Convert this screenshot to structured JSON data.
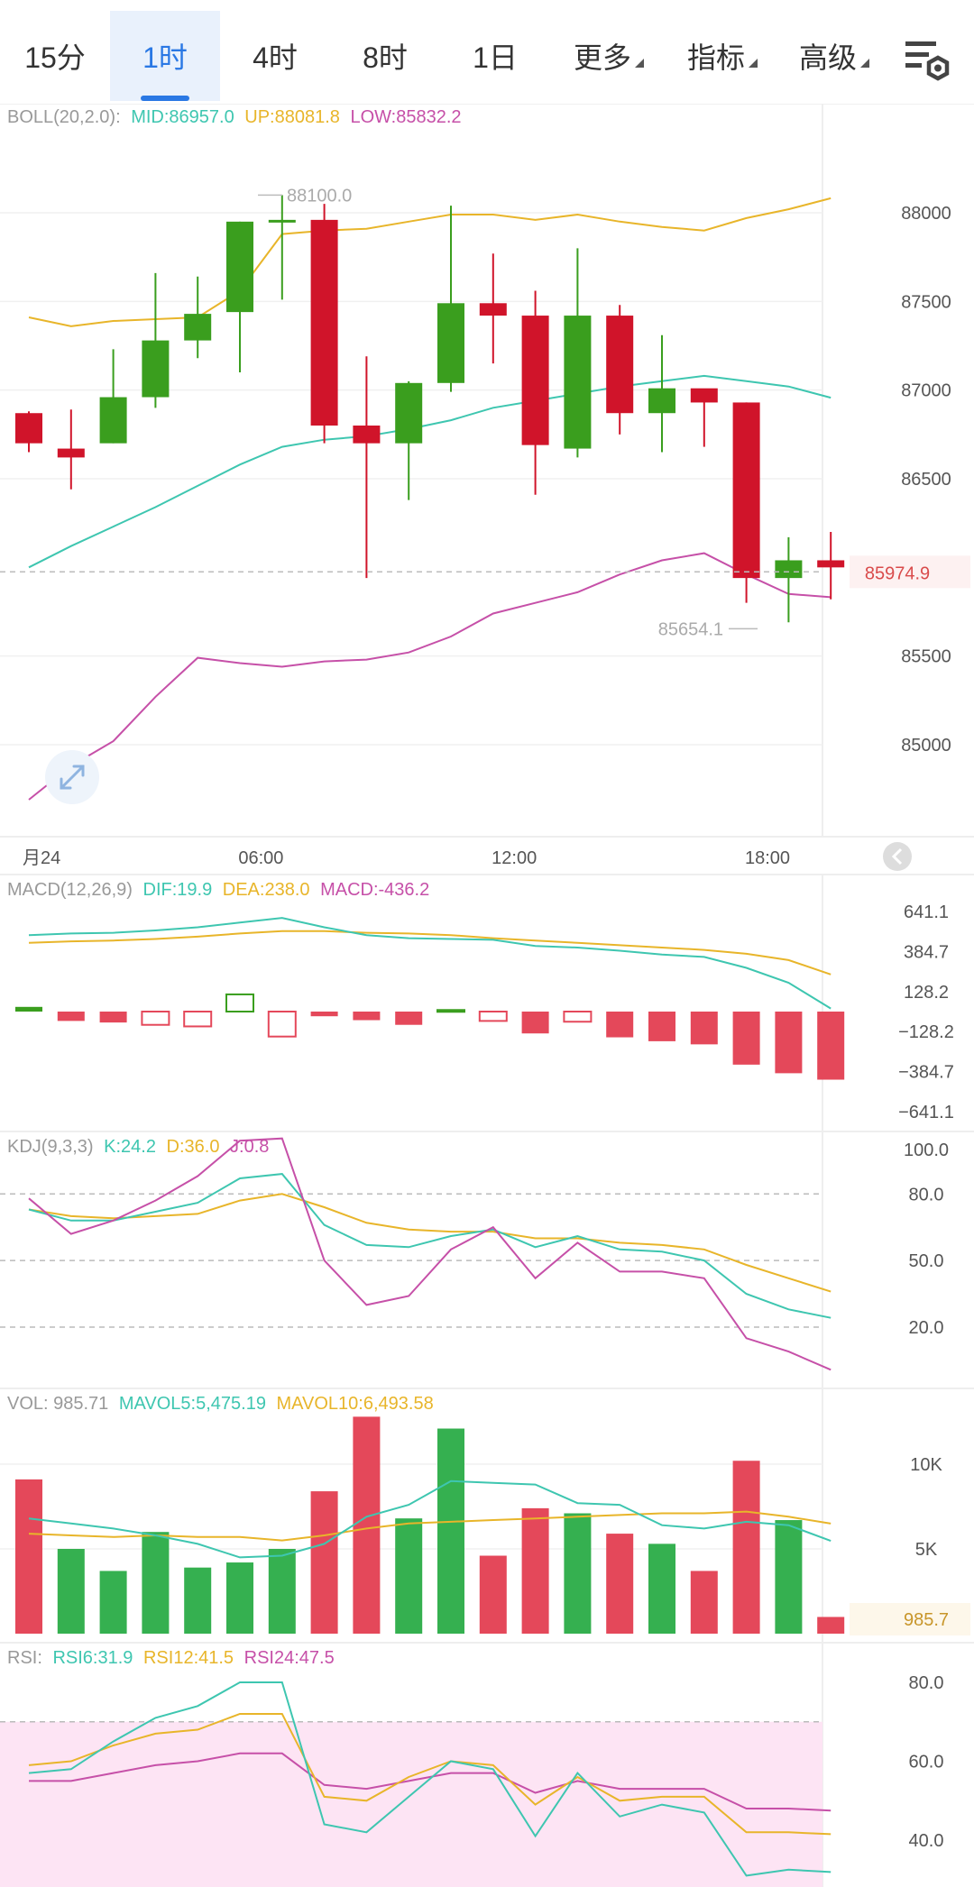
{
  "tabs": [
    {
      "label": "15分"
    },
    {
      "label": "1时",
      "active": true
    },
    {
      "label": "4时"
    },
    {
      "label": "8时"
    },
    {
      "label": "1日"
    },
    {
      "label": "更多",
      "dropdown": true
    },
    {
      "label": "指标",
      "dropdown": true
    },
    {
      "label": "高级",
      "dropdown": true
    }
  ],
  "settings_icon": "chart-settings-icon",
  "colors": {
    "up": "#3a9e1e",
    "down": "#d0142a",
    "mid": "#3ec6b0",
    "upper": "#e8b52a",
    "lower": "#c650a8",
    "pink_band": "#fde4f4"
  },
  "main": {
    "legend": {
      "name": "BOLL(20,2.0):",
      "mid": "MID:86957.0",
      "up": "UP:88081.8",
      "low": "LOW:85832.2"
    },
    "y_ticks": [
      "88000",
      "87500",
      "87000",
      "86500",
      "85500",
      "85000"
    ],
    "y_tick_values": [
      88000,
      87500,
      87000,
      86500,
      85500,
      85000
    ],
    "price_label": "85974.9",
    "price": 85974.9,
    "high_label": "88100.0",
    "high": 88100.0,
    "low_label": "85654.1",
    "low": 85654.1,
    "x_labels": [
      {
        "t": "月24",
        "i": -0.15
      },
      {
        "t": "06:00",
        "i": 5.5
      },
      {
        "t": "12:00",
        "i": 11.5
      },
      {
        "t": "18:00",
        "i": 17.5
      }
    ]
  },
  "chart_data": {
    "type": "candlestick",
    "candles": [
      {
        "o": 86870,
        "c": 86700,
        "h": 86880,
        "l": 86650
      },
      {
        "o": 86670,
        "c": 86620,
        "h": 86890,
        "l": 86440
      },
      {
        "o": 86700,
        "c": 86960,
        "h": 87230,
        "l": 86700
      },
      {
        "o": 86960,
        "c": 87280,
        "h": 87660,
        "l": 86900
      },
      {
        "o": 87280,
        "c": 87430,
        "h": 87640,
        "l": 87180
      },
      {
        "o": 87440,
        "c": 87950,
        "h": 87950,
        "l": 87100
      },
      {
        "o": 87950,
        "c": 87960,
        "h": 88100,
        "l": 87510
      },
      {
        "o": 87960,
        "c": 86800,
        "h": 88050,
        "l": 86700
      },
      {
        "o": 86800,
        "c": 86700,
        "h": 87190,
        "l": 85940
      },
      {
        "o": 86700,
        "c": 87040,
        "h": 87050,
        "l": 86380
      },
      {
        "o": 87040,
        "c": 87490,
        "h": 88040,
        "l": 86990
      },
      {
        "o": 87490,
        "c": 87420,
        "h": 87770,
        "l": 87150
      },
      {
        "o": 87420,
        "c": 86690,
        "h": 87560,
        "l": 86410
      },
      {
        "o": 86670,
        "c": 87420,
        "h": 87800,
        "l": 86620
      },
      {
        "o": 87420,
        "c": 86870,
        "h": 87480,
        "l": 86750
      },
      {
        "o": 86870,
        "c": 87010,
        "h": 87310,
        "l": 86650
      },
      {
        "o": 87010,
        "c": 86930,
        "h": 87000,
        "l": 86680
      },
      {
        "o": 86930,
        "c": 85940,
        "h": 86930,
        "l": 85800
      },
      {
        "o": 85940,
        "c": 86040,
        "h": 86170,
        "l": 85690
      },
      {
        "o": 86040,
        "c": 86000,
        "h": 86200,
        "l": 85820
      }
    ],
    "boll": {
      "mid": [
        86000,
        86120,
        86230,
        86340,
        86460,
        86580,
        86680,
        86720,
        86740,
        86780,
        86830,
        86900,
        86940,
        86980,
        87020,
        87050,
        87080,
        87050,
        87020,
        86957
      ],
      "up": [
        87410,
        87360,
        87390,
        87400,
        87410,
        87560,
        87880,
        87900,
        87910,
        87950,
        87990,
        87990,
        87960,
        87990,
        87950,
        87920,
        87900,
        87970,
        88020,
        88082
      ],
      "low": [
        84690,
        84880,
        85020,
        85270,
        85490,
        85460,
        85440,
        85470,
        85480,
        85520,
        85610,
        85740,
        85800,
        85860,
        85960,
        86040,
        86080,
        85960,
        85850,
        85832
      ]
    },
    "macd": {
      "legend": {
        "name": "MACD(12,26,9)",
        "dif": "DIF:19.9",
        "dea": "DEA:238.0",
        "macd": "MACD:-436.2"
      },
      "y_ticks": [
        "641.1",
        "384.7",
        "128.2",
        "−128.2",
        "−384.7",
        "−641.1"
      ],
      "y_tick_values": [
        641.1,
        384.7,
        128.2,
        -128.2,
        -384.7,
        -641.1
      ],
      "hist": [
        30,
        -60,
        -70,
        -85,
        -95,
        110,
        -160,
        -30,
        -55,
        -85,
        10,
        -60,
        -140,
        -65,
        -165,
        -190,
        -210,
        -340,
        -395,
        -436.2
      ],
      "hist_hollow": [
        false,
        false,
        false,
        true,
        true,
        true,
        true,
        false,
        false,
        false,
        true,
        true,
        false,
        true,
        false,
        false,
        false,
        false,
        false,
        false
      ],
      "dif": [
        490,
        500,
        505,
        520,
        540,
        570,
        600,
        540,
        490,
        470,
        465,
        460,
        420,
        410,
        390,
        365,
        350,
        280,
        185,
        19.9
      ],
      "dea": [
        440,
        450,
        455,
        465,
        480,
        500,
        515,
        515,
        505,
        500,
        490,
        470,
        455,
        440,
        425,
        410,
        395,
        370,
        330,
        238
      ]
    },
    "kdj": {
      "legend": {
        "name": "KDJ(9,3,3)",
        "k": "K:24.2",
        "d": "D:36.0",
        "j": "J:0.8"
      },
      "y_ticks": [
        "100.0",
        "80.0",
        "50.0",
        "20.0"
      ],
      "y_tick_values": [
        100,
        80,
        50,
        20
      ],
      "k": [
        73,
        68,
        68,
        72,
        76,
        87,
        89,
        66,
        57,
        56,
        61,
        64,
        56,
        61,
        55,
        54,
        50,
        35,
        28,
        24.2
      ],
      "d": [
        73,
        70,
        69,
        70,
        71,
        77,
        80,
        74,
        67,
        64,
        63,
        63,
        60,
        60,
        58,
        57,
        55,
        48,
        42,
        36
      ],
      "j": [
        78,
        62,
        68,
        77,
        88,
        104,
        105,
        50,
        30,
        34,
        55,
        65,
        42,
        58,
        45,
        45,
        42,
        15,
        9,
        0.8
      ]
    },
    "vol": {
      "legend": {
        "name": "VOL: 985.71",
        "mavol5": "MAVOL5:5,475.19",
        "mavol10": "MAVOL10:6,493.58"
      },
      "y_ticks": [
        "10K",
        "5K"
      ],
      "y_tick_values": [
        10000,
        5000
      ],
      "current_label": "985.7",
      "values": [
        9100,
        5000,
        3700,
        6000,
        3900,
        4200,
        5000,
        8400,
        12800,
        6800,
        12100,
        4600,
        7400,
        7100,
        5900,
        5300,
        3700,
        10200,
        6700,
        985.71
      ],
      "up": [
        false,
        true,
        true,
        true,
        true,
        true,
        true,
        false,
        false,
        true,
        true,
        false,
        false,
        true,
        false,
        true,
        false,
        false,
        true,
        false
      ],
      "mavol5": [
        6800,
        6500,
        6200,
        5800,
        5300,
        4500,
        4600,
        5300,
        6900,
        7600,
        9000,
        8900,
        8800,
        7700,
        7600,
        6400,
        6200,
        6600,
        6400,
        5475
      ],
      "mavol10": [
        5900,
        5800,
        5700,
        5800,
        5700,
        5700,
        5500,
        5800,
        6200,
        6500,
        6600,
        6700,
        6800,
        6900,
        7000,
        7100,
        7100,
        7200,
        6900,
        6494
      ]
    },
    "rsi": {
      "legend": {
        "name": "RSI:",
        "rsi6": "RSI6:31.9",
        "rsi12": "RSI12:41.5",
        "rsi24": "RSI24:47.5"
      },
      "y_ticks": [
        "80.0",
        "60.0",
        "40.0"
      ],
      "y_tick_values": [
        80,
        60,
        40
      ],
      "rsi6": [
        57,
        58,
        65,
        71,
        74,
        80,
        80,
        44,
        42,
        51,
        60,
        58,
        41,
        57,
        46,
        49,
        47,
        31,
        32.5,
        31.9
      ],
      "rsi12": [
        59,
        60,
        64,
        67,
        68,
        72,
        72,
        51,
        50,
        56,
        60,
        59,
        49,
        56,
        50,
        51,
        51,
        42,
        42,
        41.5
      ],
      "rsi24": [
        55,
        55,
        57,
        59,
        60,
        62,
        62,
        54,
        53,
        55,
        57,
        57,
        52,
        55,
        53,
        53,
        53,
        48,
        48,
        47.5
      ]
    }
  }
}
